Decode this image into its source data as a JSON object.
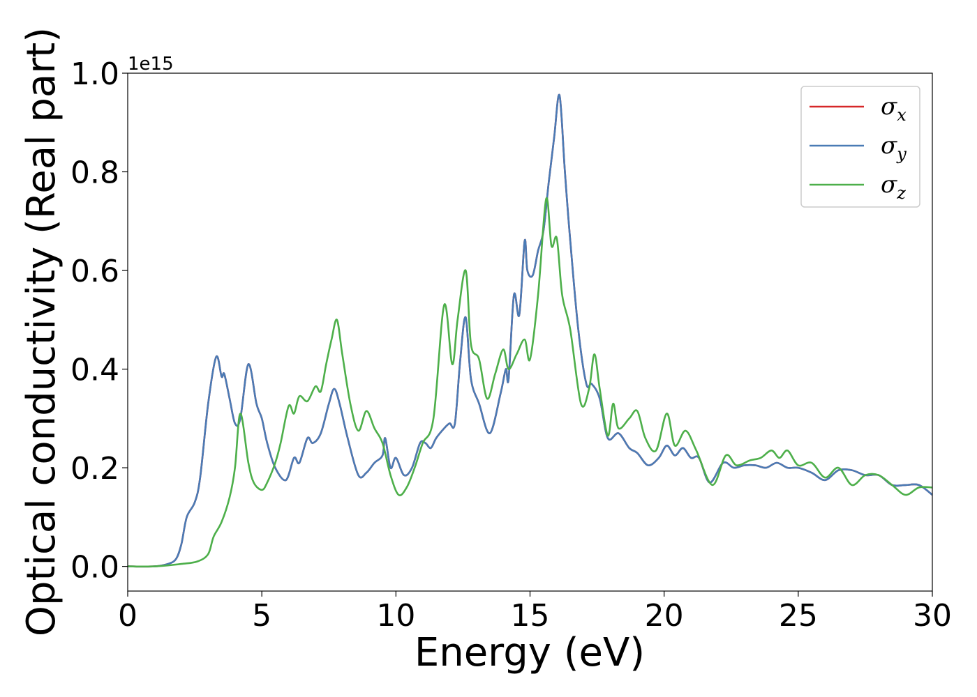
{
  "chart_data": {
    "type": "line",
    "title": "",
    "xlabel": "Energy (eV)",
    "ylabel": "Optical conductivity (Real part)",
    "y_offset_label": "1e15",
    "xlim": [
      0,
      30
    ],
    "ylim": [
      -0.05,
      1.0
    ],
    "x_ticks": [
      0,
      5,
      10,
      15,
      20,
      25,
      30
    ],
    "x_tick_labels": [
      "0",
      "5",
      "10",
      "15",
      "20",
      "25",
      "30"
    ],
    "y_ticks": [
      0.0,
      0.2,
      0.4,
      0.6,
      0.8,
      1.0
    ],
    "y_tick_labels": [
      "0.0",
      "0.2",
      "0.4",
      "0.6",
      "0.8",
      "1.0"
    ],
    "grid": false,
    "legend_position": "top-right",
    "series": [
      {
        "name": "σx",
        "legend_symbol": "σ",
        "legend_sub": "x",
        "color": "#d62728",
        "points": [
          [
            0,
            0
          ],
          [
            1,
            0
          ],
          [
            1.5,
            0.005
          ],
          [
            1.8,
            0.015
          ],
          [
            2.0,
            0.045
          ],
          [
            2.2,
            0.1
          ],
          [
            2.5,
            0.13
          ],
          [
            2.7,
            0.18
          ],
          [
            3.0,
            0.33
          ],
          [
            3.3,
            0.425
          ],
          [
            3.5,
            0.385
          ],
          [
            3.6,
            0.39
          ],
          [
            3.8,
            0.34
          ],
          [
            4.0,
            0.29
          ],
          [
            4.2,
            0.3
          ],
          [
            4.5,
            0.41
          ],
          [
            4.8,
            0.33
          ],
          [
            5.0,
            0.3
          ],
          [
            5.2,
            0.25
          ],
          [
            5.5,
            0.2
          ],
          [
            5.9,
            0.175
          ],
          [
            6.2,
            0.22
          ],
          [
            6.4,
            0.21
          ],
          [
            6.7,
            0.26
          ],
          [
            6.9,
            0.25
          ],
          [
            7.2,
            0.27
          ],
          [
            7.5,
            0.33
          ],
          [
            7.7,
            0.36
          ],
          [
            7.9,
            0.33
          ],
          [
            8.2,
            0.26
          ],
          [
            8.6,
            0.185
          ],
          [
            8.9,
            0.19
          ],
          [
            9.2,
            0.21
          ],
          [
            9.5,
            0.225
          ],
          [
            9.6,
            0.26
          ],
          [
            9.8,
            0.2
          ],
          [
            10.0,
            0.22
          ],
          [
            10.3,
            0.185
          ],
          [
            10.6,
            0.2
          ],
          [
            10.9,
            0.25
          ],
          [
            11.1,
            0.25
          ],
          [
            11.3,
            0.24
          ],
          [
            11.5,
            0.26
          ],
          [
            11.8,
            0.28
          ],
          [
            12.0,
            0.29
          ],
          [
            12.2,
            0.29
          ],
          [
            12.4,
            0.42
          ],
          [
            12.6,
            0.505
          ],
          [
            12.8,
            0.38
          ],
          [
            13.1,
            0.33
          ],
          [
            13.5,
            0.27
          ],
          [
            13.9,
            0.35
          ],
          [
            14.1,
            0.4
          ],
          [
            14.2,
            0.38
          ],
          [
            14.4,
            0.55
          ],
          [
            14.6,
            0.51
          ],
          [
            14.8,
            0.66
          ],
          [
            14.9,
            0.6
          ],
          [
            15.1,
            0.59
          ],
          [
            15.3,
            0.64
          ],
          [
            15.5,
            0.68
          ],
          [
            15.7,
            0.78
          ],
          [
            15.9,
            0.87
          ],
          [
            16.1,
            0.955
          ],
          [
            16.3,
            0.8
          ],
          [
            16.5,
            0.66
          ],
          [
            16.8,
            0.48
          ],
          [
            17.1,
            0.37
          ],
          [
            17.3,
            0.37
          ],
          [
            17.6,
            0.34
          ],
          [
            17.9,
            0.26
          ],
          [
            18.3,
            0.27
          ],
          [
            18.7,
            0.24
          ],
          [
            19.0,
            0.23
          ],
          [
            19.4,
            0.205
          ],
          [
            19.8,
            0.22
          ],
          [
            20.1,
            0.245
          ],
          [
            20.4,
            0.225
          ],
          [
            20.7,
            0.24
          ],
          [
            21.0,
            0.22
          ],
          [
            21.3,
            0.22
          ],
          [
            21.7,
            0.17
          ],
          [
            22.2,
            0.21
          ],
          [
            22.6,
            0.2
          ],
          [
            23.0,
            0.205
          ],
          [
            23.4,
            0.205
          ],
          [
            23.8,
            0.2
          ],
          [
            24.2,
            0.21
          ],
          [
            24.6,
            0.2
          ],
          [
            25.0,
            0.2
          ],
          [
            25.5,
            0.19
          ],
          [
            26.0,
            0.175
          ],
          [
            26.5,
            0.195
          ],
          [
            27.0,
            0.195
          ],
          [
            27.5,
            0.185
          ],
          [
            28.0,
            0.185
          ],
          [
            28.5,
            0.165
          ],
          [
            29.0,
            0.165
          ],
          [
            29.5,
            0.165
          ],
          [
            30.0,
            0.145
          ]
        ]
      },
      {
        "name": "σy",
        "legend_symbol": "σ",
        "legend_sub": "y",
        "color": "#4a7bb5",
        "points": [
          [
            0,
            0
          ],
          [
            1,
            0
          ],
          [
            1.5,
            0.005
          ],
          [
            1.8,
            0.015
          ],
          [
            2.0,
            0.045
          ],
          [
            2.2,
            0.1
          ],
          [
            2.5,
            0.13
          ],
          [
            2.7,
            0.18
          ],
          [
            3.0,
            0.33
          ],
          [
            3.3,
            0.425
          ],
          [
            3.5,
            0.385
          ],
          [
            3.6,
            0.39
          ],
          [
            3.8,
            0.34
          ],
          [
            4.0,
            0.29
          ],
          [
            4.2,
            0.3
          ],
          [
            4.5,
            0.41
          ],
          [
            4.8,
            0.33
          ],
          [
            5.0,
            0.3
          ],
          [
            5.2,
            0.25
          ],
          [
            5.5,
            0.2
          ],
          [
            5.9,
            0.175
          ],
          [
            6.2,
            0.22
          ],
          [
            6.4,
            0.21
          ],
          [
            6.7,
            0.26
          ],
          [
            6.9,
            0.25
          ],
          [
            7.2,
            0.27
          ],
          [
            7.5,
            0.33
          ],
          [
            7.7,
            0.36
          ],
          [
            7.9,
            0.33
          ],
          [
            8.2,
            0.26
          ],
          [
            8.6,
            0.185
          ],
          [
            8.9,
            0.19
          ],
          [
            9.2,
            0.21
          ],
          [
            9.5,
            0.225
          ],
          [
            9.6,
            0.26
          ],
          [
            9.8,
            0.2
          ],
          [
            10.0,
            0.22
          ],
          [
            10.3,
            0.185
          ],
          [
            10.6,
            0.2
          ],
          [
            10.9,
            0.25
          ],
          [
            11.1,
            0.25
          ],
          [
            11.3,
            0.24
          ],
          [
            11.5,
            0.26
          ],
          [
            11.8,
            0.28
          ],
          [
            12.0,
            0.29
          ],
          [
            12.2,
            0.29
          ],
          [
            12.4,
            0.42
          ],
          [
            12.6,
            0.505
          ],
          [
            12.8,
            0.38
          ],
          [
            13.1,
            0.33
          ],
          [
            13.5,
            0.27
          ],
          [
            13.9,
            0.35
          ],
          [
            14.1,
            0.4
          ],
          [
            14.2,
            0.38
          ],
          [
            14.4,
            0.55
          ],
          [
            14.6,
            0.51
          ],
          [
            14.8,
            0.66
          ],
          [
            14.9,
            0.6
          ],
          [
            15.1,
            0.59
          ],
          [
            15.3,
            0.64
          ],
          [
            15.5,
            0.68
          ],
          [
            15.7,
            0.78
          ],
          [
            15.9,
            0.87
          ],
          [
            16.1,
            0.955
          ],
          [
            16.3,
            0.8
          ],
          [
            16.5,
            0.66
          ],
          [
            16.8,
            0.48
          ],
          [
            17.1,
            0.37
          ],
          [
            17.3,
            0.37
          ],
          [
            17.6,
            0.34
          ],
          [
            17.9,
            0.26
          ],
          [
            18.3,
            0.27
          ],
          [
            18.7,
            0.24
          ],
          [
            19.0,
            0.23
          ],
          [
            19.4,
            0.205
          ],
          [
            19.8,
            0.22
          ],
          [
            20.1,
            0.245
          ],
          [
            20.4,
            0.225
          ],
          [
            20.7,
            0.24
          ],
          [
            21.0,
            0.22
          ],
          [
            21.3,
            0.22
          ],
          [
            21.7,
            0.17
          ],
          [
            22.2,
            0.21
          ],
          [
            22.6,
            0.2
          ],
          [
            23.0,
            0.205
          ],
          [
            23.4,
            0.205
          ],
          [
            23.8,
            0.2
          ],
          [
            24.2,
            0.21
          ],
          [
            24.6,
            0.2
          ],
          [
            25.0,
            0.2
          ],
          [
            25.5,
            0.19
          ],
          [
            26.0,
            0.175
          ],
          [
            26.5,
            0.195
          ],
          [
            27.0,
            0.195
          ],
          [
            27.5,
            0.185
          ],
          [
            28.0,
            0.185
          ],
          [
            28.5,
            0.165
          ],
          [
            29.0,
            0.165
          ],
          [
            29.5,
            0.165
          ],
          [
            30.0,
            0.145
          ]
        ]
      },
      {
        "name": "σz",
        "legend_symbol": "σ",
        "legend_sub": "z",
        "color": "#4daf4a",
        "points": [
          [
            0,
            0
          ],
          [
            1,
            0
          ],
          [
            2.0,
            0.005
          ],
          [
            2.6,
            0.01
          ],
          [
            3.0,
            0.025
          ],
          [
            3.2,
            0.06
          ],
          [
            3.5,
            0.09
          ],
          [
            3.8,
            0.14
          ],
          [
            4.0,
            0.2
          ],
          [
            4.2,
            0.31
          ],
          [
            4.5,
            0.21
          ],
          [
            4.7,
            0.17
          ],
          [
            5.0,
            0.155
          ],
          [
            5.2,
            0.17
          ],
          [
            5.5,
            0.21
          ],
          [
            5.7,
            0.25
          ],
          [
            6.0,
            0.325
          ],
          [
            6.2,
            0.31
          ],
          [
            6.4,
            0.345
          ],
          [
            6.7,
            0.335
          ],
          [
            7.0,
            0.365
          ],
          [
            7.2,
            0.355
          ],
          [
            7.4,
            0.41
          ],
          [
            7.6,
            0.46
          ],
          [
            7.8,
            0.5
          ],
          [
            8.0,
            0.43
          ],
          [
            8.3,
            0.33
          ],
          [
            8.6,
            0.275
          ],
          [
            8.9,
            0.315
          ],
          [
            9.2,
            0.28
          ],
          [
            9.5,
            0.25
          ],
          [
            9.8,
            0.185
          ],
          [
            10.1,
            0.145
          ],
          [
            10.4,
            0.16
          ],
          [
            10.7,
            0.2
          ],
          [
            11.0,
            0.25
          ],
          [
            11.4,
            0.3
          ],
          [
            11.8,
            0.53
          ],
          [
            12.1,
            0.41
          ],
          [
            12.3,
            0.5
          ],
          [
            12.6,
            0.6
          ],
          [
            12.8,
            0.45
          ],
          [
            13.1,
            0.42
          ],
          [
            13.4,
            0.34
          ],
          [
            13.7,
            0.39
          ],
          [
            14.0,
            0.44
          ],
          [
            14.2,
            0.4
          ],
          [
            14.5,
            0.43
          ],
          [
            14.8,
            0.46
          ],
          [
            15.0,
            0.42
          ],
          [
            15.3,
            0.55
          ],
          [
            15.6,
            0.745
          ],
          [
            15.8,
            0.65
          ],
          [
            16.0,
            0.665
          ],
          [
            16.2,
            0.55
          ],
          [
            16.5,
            0.48
          ],
          [
            16.9,
            0.33
          ],
          [
            17.2,
            0.36
          ],
          [
            17.4,
            0.43
          ],
          [
            17.6,
            0.36
          ],
          [
            17.9,
            0.265
          ],
          [
            18.1,
            0.33
          ],
          [
            18.3,
            0.28
          ],
          [
            18.7,
            0.3
          ],
          [
            19.0,
            0.315
          ],
          [
            19.3,
            0.26
          ],
          [
            19.7,
            0.235
          ],
          [
            20.1,
            0.31
          ],
          [
            20.4,
            0.245
          ],
          [
            20.8,
            0.275
          ],
          [
            21.2,
            0.235
          ],
          [
            21.8,
            0.165
          ],
          [
            22.3,
            0.225
          ],
          [
            22.7,
            0.205
          ],
          [
            23.2,
            0.215
          ],
          [
            23.6,
            0.22
          ],
          [
            24.0,
            0.235
          ],
          [
            24.3,
            0.22
          ],
          [
            24.6,
            0.235
          ],
          [
            25.0,
            0.205
          ],
          [
            25.5,
            0.21
          ],
          [
            26.0,
            0.18
          ],
          [
            26.5,
            0.2
          ],
          [
            27.0,
            0.165
          ],
          [
            27.5,
            0.185
          ],
          [
            28.0,
            0.185
          ],
          [
            28.5,
            0.165
          ],
          [
            29.0,
            0.145
          ],
          [
            29.5,
            0.16
          ],
          [
            30.0,
            0.16
          ]
        ]
      }
    ]
  }
}
